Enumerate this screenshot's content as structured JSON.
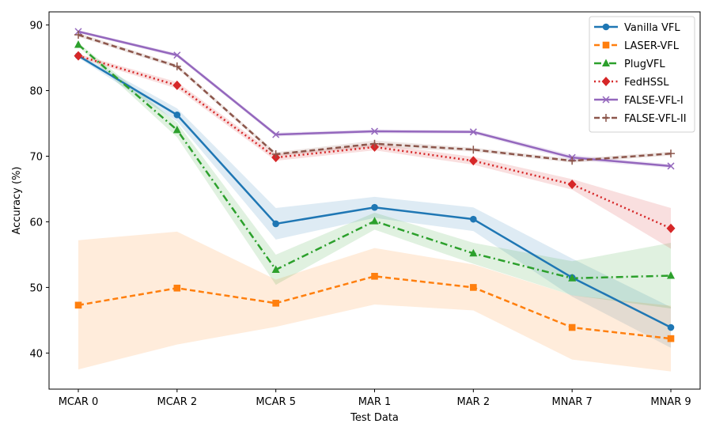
{
  "chart_data": {
    "type": "line",
    "title": "",
    "xlabel": "Test Data",
    "ylabel": "Accuracy (%)",
    "categories": [
      "MCAR 0",
      "MCAR 2",
      "MCAR 5",
      "MAR 1",
      "MAR 2",
      "MNAR 7",
      "MNAR 9"
    ],
    "ylim": [
      34.5,
      92.0
    ],
    "yticks": [
      40,
      50,
      60,
      70,
      80,
      90
    ],
    "legend_position": "top-right",
    "grid": false,
    "series": [
      {
        "name": "Vanilla VFL",
        "color": "#1f77b4",
        "dash": "solid",
        "marker": "circle",
        "values": [
          85.3,
          76.3,
          59.7,
          62.2,
          60.4,
          51.5,
          43.9
        ],
        "lower": [
          85.0,
          75.3,
          57.3,
          60.6,
          58.6,
          48.6,
          40.8
        ],
        "upper": [
          85.6,
          77.3,
          62.1,
          63.8,
          62.2,
          54.4,
          47.0
        ]
      },
      {
        "name": "LASER-VFL",
        "color": "#ff7f0e",
        "dash": "dashed",
        "marker": "square",
        "values": [
          47.3,
          49.9,
          47.6,
          51.7,
          50.0,
          43.9,
          42.2
        ],
        "lower": [
          37.5,
          41.3,
          44.0,
          47.4,
          46.5,
          39.0,
          37.2
        ],
        "upper": [
          57.2,
          58.5,
          51.2,
          56.0,
          53.5,
          48.8,
          47.2
        ]
      },
      {
        "name": "PlugVFL",
        "color": "#2ca02c",
        "dash": "dashdot",
        "marker": "triangle",
        "values": [
          87.0,
          74.0,
          52.7,
          60.1,
          55.2,
          51.4,
          51.8
        ],
        "lower": [
          86.7,
          72.9,
          50.4,
          58.8,
          53.6,
          48.8,
          46.8
        ],
        "upper": [
          87.3,
          75.1,
          55.0,
          61.4,
          56.8,
          54.0,
          56.8
        ]
      },
      {
        "name": "FedHSSL",
        "color": "#d62728",
        "dash": "dotted",
        "marker": "diamond",
        "values": [
          85.3,
          80.8,
          69.8,
          71.4,
          69.3,
          65.7,
          59.0
        ],
        "lower": [
          85.0,
          80.3,
          69.3,
          70.9,
          68.7,
          64.9,
          55.9
        ],
        "upper": [
          85.6,
          81.3,
          70.3,
          71.9,
          69.9,
          66.5,
          62.1
        ]
      },
      {
        "name": "FALSE-VFL-I",
        "color": "#9467bd",
        "dash": "solid",
        "marker": "x",
        "values": [
          89.0,
          85.4,
          73.3,
          73.8,
          73.7,
          69.8,
          68.5
        ],
        "lower": [
          88.8,
          85.1,
          73.0,
          73.5,
          73.4,
          69.4,
          68.2
        ],
        "upper": [
          89.2,
          85.7,
          73.6,
          74.1,
          74.0,
          70.2,
          68.8
        ]
      },
      {
        "name": "FALSE-VFL-II",
        "color": "#8c564b",
        "dash": "dashed",
        "marker": "plus",
        "values": [
          88.5,
          83.7,
          70.3,
          71.9,
          71.0,
          69.3,
          70.4
        ],
        "lower": [
          88.2,
          83.4,
          70.0,
          71.4,
          70.7,
          69.0,
          70.1
        ],
        "upper": [
          88.8,
          84.0,
          70.6,
          72.4,
          71.3,
          69.6,
          70.7
        ]
      }
    ]
  }
}
